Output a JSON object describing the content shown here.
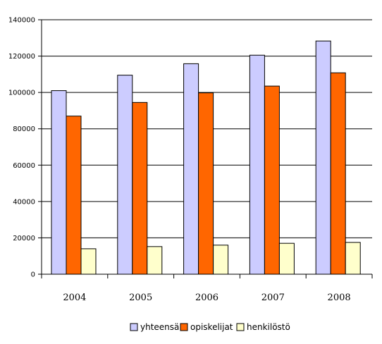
{
  "chart_data": {
    "type": "bar",
    "categories": [
      "2004",
      "2005",
      "2006",
      "2007",
      "2008"
    ],
    "series": [
      {
        "name": "yhteensä",
        "color": "#ccccff",
        "values": [
          101000,
          109500,
          115800,
          120500,
          128300
        ]
      },
      {
        "name": "opiskelijat",
        "color": "#ff6600",
        "values": [
          87000,
          94500,
          99800,
          103500,
          110800
        ]
      },
      {
        "name": "henkilöstö",
        "color": "#ffffcc",
        "values": [
          14000,
          15200,
          16000,
          17000,
          17500
        ]
      }
    ],
    "yticks": [
      "0",
      "20000",
      "40000",
      "60000",
      "80000",
      "100000",
      "120000",
      "140000"
    ],
    "ylim": [
      0,
      140000
    ],
    "grid": true,
    "legend_position": "bottom"
  }
}
